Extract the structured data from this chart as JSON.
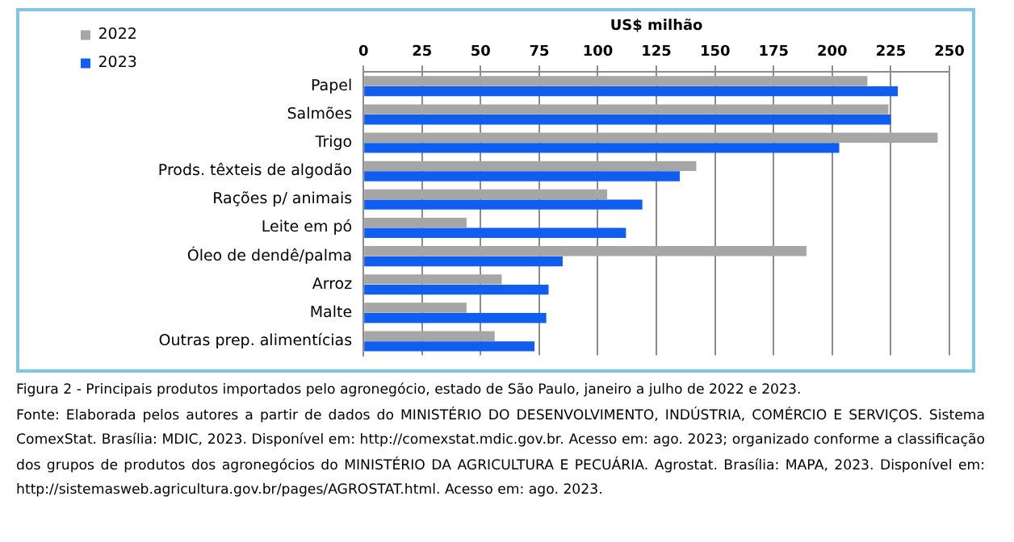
{
  "chart_data": {
    "type": "bar",
    "orientation": "horizontal",
    "xlabel": "US$ milhão",
    "title": "Figura 2 - Principais produtos importados pelo agronegócio, estado de São Paulo, janeiro a julho de 2022 e 2023.",
    "annotations": [
      "Fonte: Elaborada pelos autores a partir de dados do MINISTÉRIO DO DESENVOLVIMENTO, INDÚSTRIA, COMÉRCIO E SERVIÇOS. Sistema ComexStat. Brasília: MDIC, 2023. Disponível em: http://comexstat.mdic.gov.br. Acesso em: ago. 2023; organizado conforme a classificação dos grupos de produtos dos agronegócios do MINISTÉRIO DA AGRICULTURA E PECUÁRIA. Agrostat. Brasília: MAPA, 2023. Disponível em: http://sistemasweb.agricultura.gov.br/pages/AGROSTAT.html. Acesso em: ago. 2023."
    ],
    "categories": [
      "Papel",
      "Salmões",
      "Trigo",
      "Prods. têxteis de algodão",
      "Rações p/ animais",
      "Leite em pó",
      "Óleo de dendê/palma",
      "Arroz",
      "Malte",
      "Outras prep. alimentícias"
    ],
    "series": [
      {
        "name": "2022",
        "color": "#a6a6a6",
        "values": [
          215,
          224,
          245,
          142,
          104,
          44,
          189,
          59,
          44,
          56
        ]
      },
      {
        "name": "2023",
        "color": "#0f5ef0",
        "values": [
          228,
          225,
          203,
          135,
          119,
          112,
          85,
          79,
          78,
          73
        ]
      }
    ],
    "xlim": [
      0,
      250
    ],
    "xticks": [
      0,
      25,
      50,
      75,
      100,
      125,
      150,
      175,
      200,
      225,
      250
    ],
    "grid": "x",
    "legend": "top left"
  }
}
